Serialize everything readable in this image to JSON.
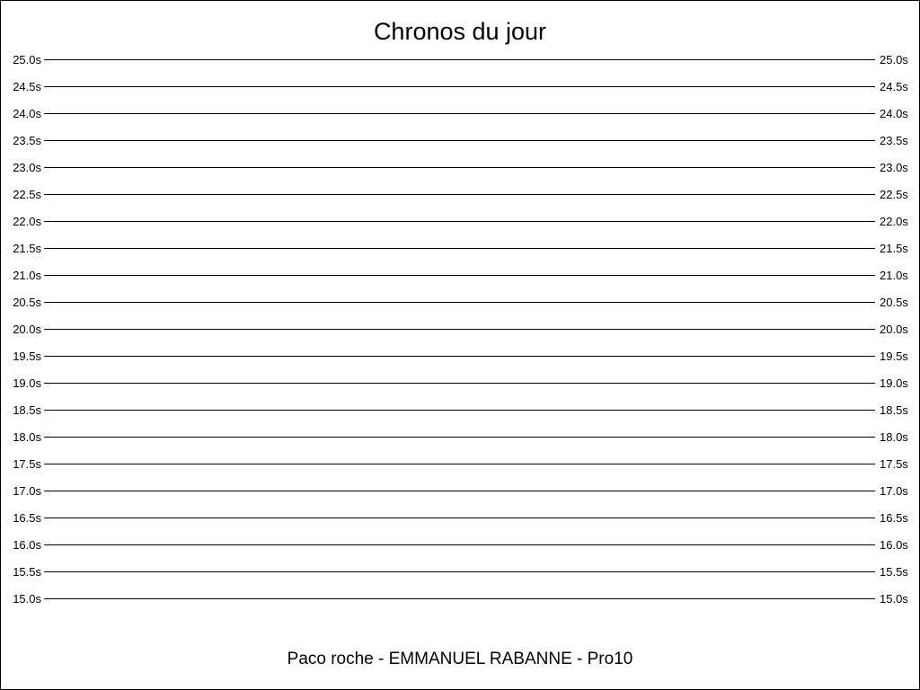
{
  "chart_data": {
    "type": "line",
    "title": "Chronos du jour",
    "subtitle": "Paco roche - EMMANUEL RABANNE - Pro10",
    "xlabel": "",
    "ylabel": "",
    "ylim": [
      15.0,
      25.0
    ],
    "ytick_step": 0.5,
    "ytick_labels": [
      "25.0s",
      "24.5s",
      "24.0s",
      "23.5s",
      "23.0s",
      "22.5s",
      "22.0s",
      "21.5s",
      "21.0s",
      "20.5s",
      "20.0s",
      "19.5s",
      "19.0s",
      "18.5s",
      "18.0s",
      "17.5s",
      "17.0s",
      "16.5s",
      "16.0s",
      "15.5s",
      "15.0s"
    ],
    "y_axis_labels_both_sides": true,
    "grid": true,
    "series": []
  }
}
